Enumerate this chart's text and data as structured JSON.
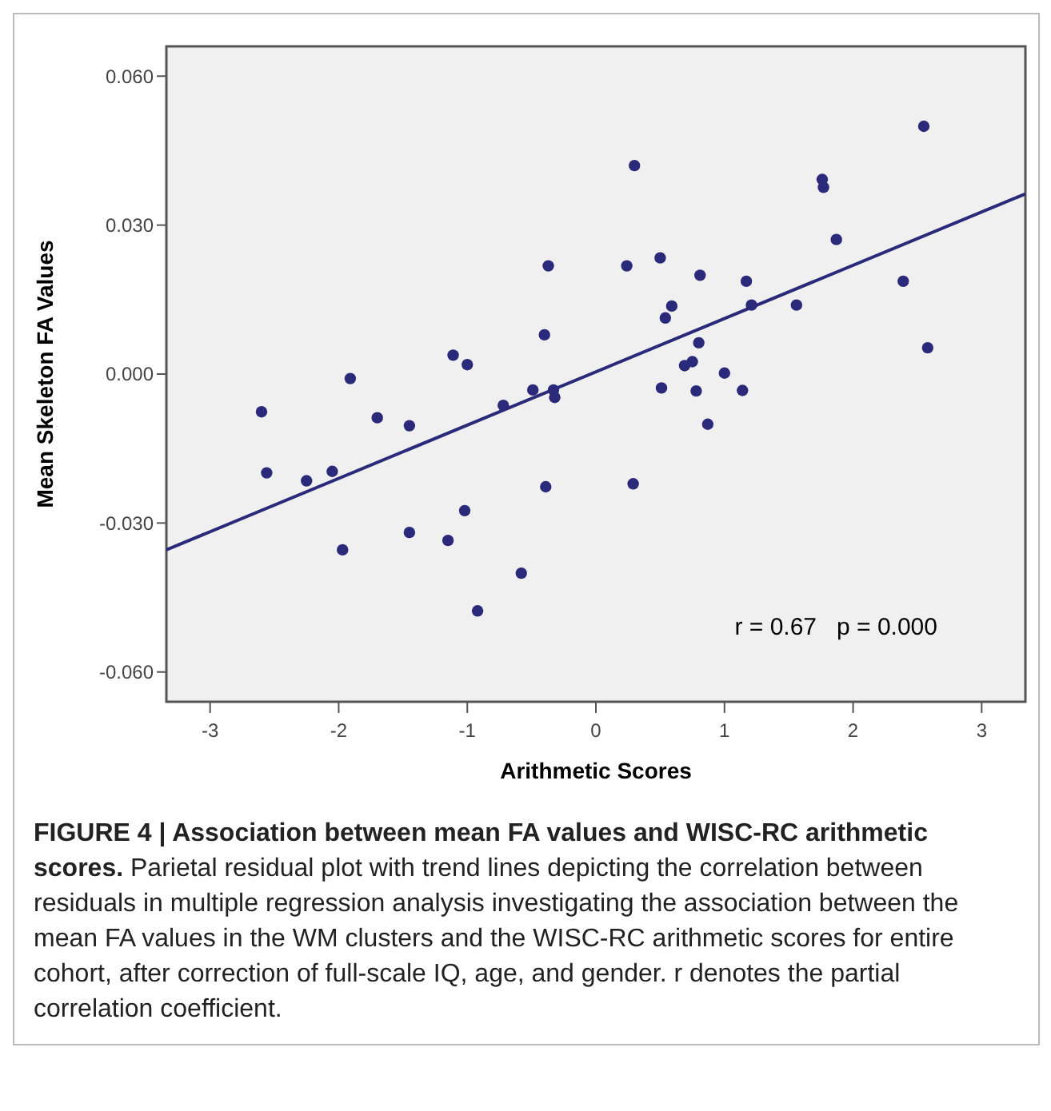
{
  "chart_data": {
    "type": "scatter",
    "title": "FIGURE 4 | Association between mean FA values and WISC-RC arithmetic scores.",
    "xlabel": "Arithmetic Scores",
    "ylabel": "Mean Skeleton FA Values",
    "xlim": [
      -3.34,
      3.34
    ],
    "ylim": [
      -0.066,
      0.066
    ],
    "xticks": [
      -3,
      -2,
      -1,
      0,
      1,
      2,
      3
    ],
    "yticks": [
      {
        "value": -0.06,
        "label": "-0.060"
      },
      {
        "value": -0.03,
        "label": "-0.030"
      },
      {
        "value": 0,
        "label": "0.000"
      },
      {
        "value": 0.03,
        "label": "0.030"
      },
      {
        "value": 0.06,
        "label": "0.060"
      }
    ],
    "grid": false,
    "series": [
      {
        "marker": "circle",
        "color": "#2b2a7a",
        "x": [
          -2.6,
          -2.56,
          -2.25,
          -2.05,
          -1.91,
          -1.97,
          -1.7,
          -1.45,
          -1.45,
          -1.15,
          -1.11,
          -1.0,
          -1.02,
          -0.92,
          -0.72,
          -0.58,
          -0.49,
          -0.4,
          -0.39,
          -0.37,
          -0.33,
          -0.32,
          0.3,
          0.24,
          0.5,
          0.81,
          1.17,
          1.21,
          0.59,
          0.54,
          0.8,
          0.75,
          0.69,
          1.0,
          0.51,
          0.78,
          1.14,
          0.87,
          0.29,
          1.76,
          1.77,
          1.87,
          1.56,
          2.55,
          2.39,
          2.58
        ],
        "values": [
          -0.0076,
          -0.0199,
          -0.0215,
          -0.0196,
          -0.0009,
          -0.0354,
          -0.0088,
          -0.0104,
          -0.0319,
          -0.0335,
          0.0038,
          0.0019,
          -0.0275,
          -0.0477,
          -0.0063,
          -0.0401,
          -0.0032,
          0.0079,
          -0.0227,
          0.0218,
          -0.0032,
          -0.0047,
          0.042,
          0.0218,
          0.0234,
          0.0199,
          0.0187,
          0.0139,
          0.0137,
          0.0113,
          0.0063,
          0.0025,
          0.0017,
          0.0002,
          -0.0028,
          -0.0034,
          -0.0033,
          -0.0101,
          -0.0221,
          0.0392,
          0.0376,
          0.0271,
          0.0139,
          0.0499,
          0.0187,
          0.0053
        ]
      },
      {
        "type": "line",
        "marker": "none",
        "color": "#2b2a7a",
        "x": [
          -3.34,
          3.34
        ],
        "values": [
          -0.0354,
          0.0363
        ]
      }
    ],
    "annotations": [
      "r = 0.67   p = 0.000",
      "Parietal residual plot with trend lines depicting the correlation between residuals in multiple regression analysis investigating the association between the mean FA values in the WM clusters and the WISC-RC arithmetic scores for entire cohort, after correction of full-scale IQ, age, and gender. r denotes the partial correlation coefficient."
    ]
  }
}
